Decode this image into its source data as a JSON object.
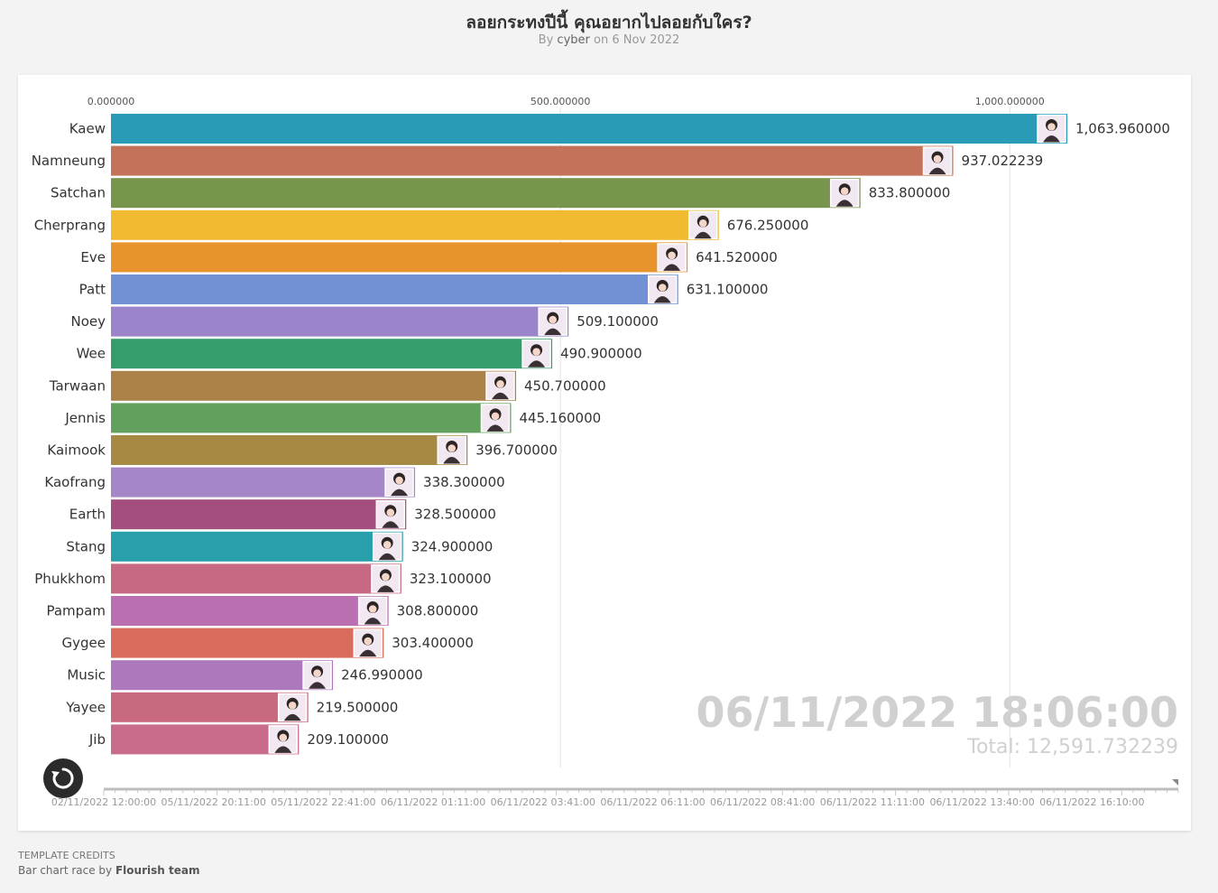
{
  "header": {
    "title": "ลอยกระทงปีนี้ คุณอยากไปลอยกับใคร?",
    "byline_prefix": "By",
    "author": "cyber",
    "byline_date": "on 6 Nov 2022"
  },
  "chart_data": {
    "type": "bar",
    "orientation": "horizontal",
    "current_time": "06/11/2022 18:06:00",
    "total_label": "Total: 12,591.732239",
    "xlim": [
      0,
      1063.96
    ],
    "axis_ticks": [
      {
        "value": 0,
        "label": "0.000000"
      },
      {
        "value": 500,
        "label": "500.000000"
      },
      {
        "value": 1000,
        "label": "1,000.000000"
      }
    ],
    "categories": [
      "Kaew",
      "Namneung",
      "Satchan",
      "Cherprang",
      "Eve",
      "Patt",
      "Noey",
      "Wee",
      "Tarwaan",
      "Jennis",
      "Kaimook",
      "Kaofrang",
      "Earth",
      "Stang",
      "Phukkhom",
      "Pampam",
      "Gygee",
      "Music",
      "Yayee",
      "Jib"
    ],
    "values": [
      1063.96,
      937.022239,
      833.8,
      676.25,
      641.52,
      631.1,
      509.1,
      490.9,
      450.7,
      445.16,
      396.7,
      338.3,
      328.5,
      324.9,
      323.1,
      308.8,
      303.4,
      246.99,
      219.5,
      209.1
    ],
    "value_labels": [
      "1,063.960000",
      "937.022239",
      "833.800000",
      "676.250000",
      "641.520000",
      "631.100000",
      "509.100000",
      "490.900000",
      "450.700000",
      "445.160000",
      "396.700000",
      "338.300000",
      "328.500000",
      "324.900000",
      "323.100000",
      "308.800000",
      "303.400000",
      "246.990000",
      "219.500000",
      "209.100000"
    ],
    "colors": [
      "#2a9bb7",
      "#c4735a",
      "#77954d",
      "#f0bb30",
      "#e8942d",
      "#7290d4",
      "#9b84c9",
      "#359d6c",
      "#ab8147",
      "#62a05d",
      "#a68943",
      "#a587c8",
      "#a34f7d",
      "#27a0ab",
      "#c86983",
      "#b96fb0",
      "#d96c5c",
      "#ad79bd",
      "#c8697d",
      "#c96b8a"
    ],
    "timeline_labels": [
      "02/11/2022 12:00:00",
      "05/11/2022 20:11:00",
      "05/11/2022 22:41:00",
      "06/11/2022 01:11:00",
      "06/11/2022 03:41:00",
      "06/11/2022 06:11:00",
      "06/11/2022 08:41:00",
      "06/11/2022 11:11:00",
      "06/11/2022 13:40:00",
      "06/11/2022 16:10:00"
    ],
    "timeline_progress": 1.0
  },
  "credits": {
    "line1": "TEMPLATE CREDITS",
    "line2_prefix": "Bar chart race by",
    "line2_author": "Flourish team"
  },
  "icons": {
    "replay": "replay-icon",
    "avatar": "avatar-photo-icon"
  }
}
